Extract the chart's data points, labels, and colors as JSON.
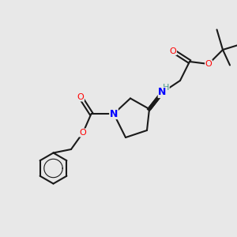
{
  "bg_color": "#e8e8e8",
  "figsize": [
    3.0,
    3.0
  ],
  "dpi": 100,
  "bond_color": "#1a1a1a",
  "bond_width": 1.5,
  "atom_colors": {
    "C": "#1a1a1a",
    "N": "#0000ff",
    "O": "#ff0000",
    "H": "#4a9a8a"
  },
  "font_size": 9,
  "font_size_small": 8
}
